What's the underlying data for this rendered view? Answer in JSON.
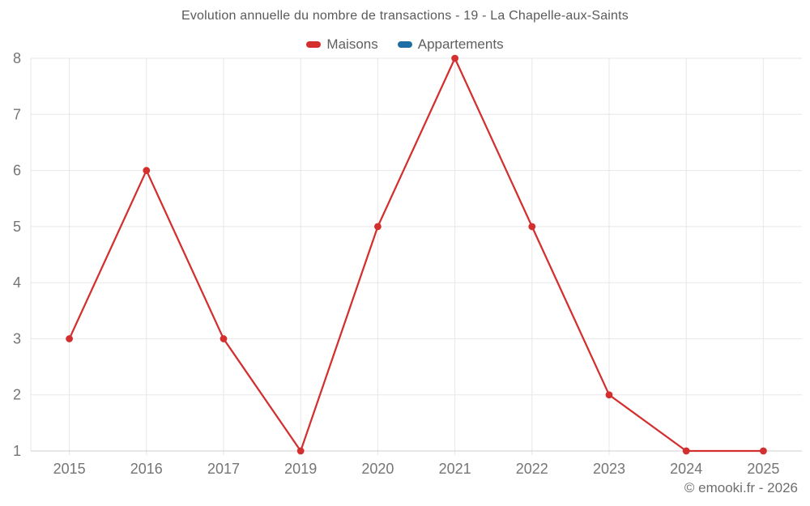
{
  "chart_data": {
    "type": "line",
    "title": "Evolution annuelle du nombre de transactions - 19 - La Chapelle-aux-Saints",
    "categories": [
      "2015",
      "2016",
      "2017",
      "2019",
      "2020",
      "2021",
      "2022",
      "2023",
      "2024",
      "2025"
    ],
    "series": [
      {
        "name": "Maisons",
        "color": "#d32f2f",
        "values": [
          3,
          6,
          3,
          1,
          5,
          8,
          5,
          2,
          1,
          1
        ]
      },
      {
        "name": "Appartements",
        "color": "#1c6ea4",
        "values": []
      }
    ],
    "ylim": [
      1,
      8
    ],
    "yticks": [
      1,
      2,
      3,
      4,
      5,
      6,
      7,
      8
    ],
    "grid": true,
    "legend_position": "top"
  },
  "footer": {
    "copyright": "© emooki.fr - 2026"
  },
  "colors": {
    "grid": "#e7e7e7",
    "axis_line": "#cfcfcf",
    "tick_label": "#757575",
    "title": "#5a5a5a"
  }
}
